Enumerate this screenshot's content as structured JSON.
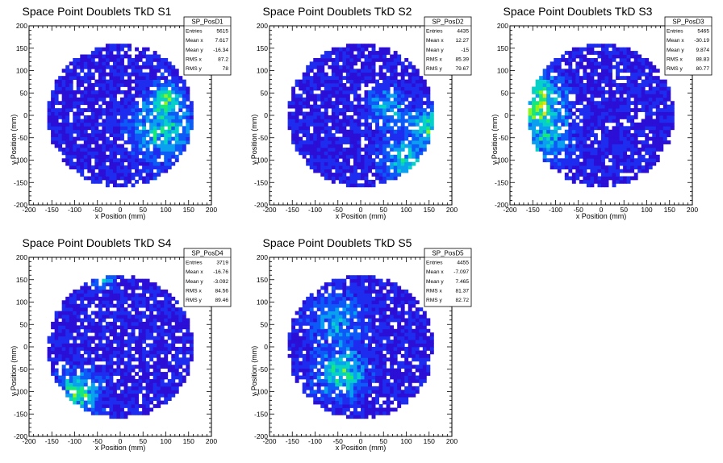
{
  "chart_data": [
    {
      "type": "heatmap",
      "title": "Space Point Doublets TkD S1",
      "xlabel": "x Position (mm)",
      "ylabel": "y Position (mm)",
      "xlim": [
        -200,
        200
      ],
      "ylim": [
        -200,
        200
      ],
      "ticks": [
        "-200",
        "-150",
        "-100",
        "-50",
        "0",
        "50",
        "100",
        "150",
        "200"
      ],
      "stats": {
        "name": "SP_PosD1",
        "rows": [
          {
            "label": "Entries",
            "value": "5615"
          },
          {
            "label": "Mean x",
            "value": "7.617"
          },
          {
            "label": "Mean y",
            "value": "-16.34"
          },
          {
            "label": "RMS x",
            "value": "87.2"
          },
          {
            "label": "RMS y",
            "value": "78"
          }
        ]
      },
      "filled_disk_radius": 160,
      "hotspots": [
        {
          "x": 95,
          "y": -30,
          "r": 50,
          "w": 1.2
        },
        {
          "x": 100,
          "y": 40,
          "r": 18,
          "w": 1.5
        }
      ]
    },
    {
      "type": "heatmap",
      "title": "Space Point Doublets TkD S2",
      "xlabel": "x Position (mm)",
      "ylabel": "y Position (mm)",
      "xlim": [
        -200,
        200
      ],
      "ylim": [
        -200,
        200
      ],
      "ticks": [
        "-200",
        "-150",
        "-100",
        "-50",
        "0",
        "50",
        "100",
        "150",
        "200"
      ],
      "stats": {
        "name": "SP_PosD2",
        "rows": [
          {
            "label": "Entries",
            "value": "4435"
          },
          {
            "label": "Mean x",
            "value": "12.27"
          },
          {
            "label": "Mean y",
            "value": "-15"
          },
          {
            "label": "RMS x",
            "value": "85.39"
          },
          {
            "label": "RMS y",
            "value": "79.67"
          }
        ]
      },
      "filled_disk_radius": 160,
      "hotspots": [
        {
          "x": 150,
          "y": -20,
          "r": 25,
          "w": 1.6
        },
        {
          "x": 100,
          "y": -100,
          "r": 35,
          "w": 1.2
        },
        {
          "x": 60,
          "y": 20,
          "r": 30,
          "w": 0.9
        }
      ]
    },
    {
      "type": "heatmap",
      "title": "Space Point Doublets TkD S3",
      "xlabel": "x Position (mm)",
      "ylabel": "y Position (mm)",
      "xlim": [
        -200,
        200
      ],
      "ylim": [
        -200,
        200
      ],
      "ticks": [
        "-200",
        "-150",
        "-100",
        "-50",
        "0",
        "50",
        "100",
        "150",
        "200"
      ],
      "stats": {
        "name": "SP_PosD3",
        "rows": [
          {
            "label": "Entries",
            "value": "5465"
          },
          {
            "label": "Mean x",
            "value": "-30.19"
          },
          {
            "label": "Mean y",
            "value": "9.874"
          },
          {
            "label": "RMS x",
            "value": "88.83"
          },
          {
            "label": "RMS y",
            "value": "80.77"
          }
        ]
      },
      "filled_disk_radius": 160,
      "hotspots": [
        {
          "x": -140,
          "y": 30,
          "r": 40,
          "w": 1.8
        },
        {
          "x": -120,
          "y": -60,
          "r": 35,
          "w": 0.9
        }
      ]
    },
    {
      "type": "heatmap",
      "title": "Space Point Doublets TkD S4",
      "xlabel": "x Position (mm)",
      "ylabel": "y Position (mm)",
      "xlim": [
        -200,
        200
      ],
      "ylim": [
        -200,
        200
      ],
      "ticks": [
        "-200",
        "-150",
        "-100",
        "-50",
        "0",
        "50",
        "100",
        "150",
        "200"
      ],
      "stats": {
        "name": "SP_PosD4",
        "rows": [
          {
            "label": "Entries",
            "value": "3719"
          },
          {
            "label": "Mean x",
            "value": "-16.76"
          },
          {
            "label": "Mean y",
            "value": "-3.092"
          },
          {
            "label": "RMS x",
            "value": "84.56"
          },
          {
            "label": "RMS y",
            "value": "89.46"
          }
        ]
      },
      "filled_disk_radius": 160,
      "hotspots": [
        {
          "x": -90,
          "y": -100,
          "r": 30,
          "w": 1.6
        },
        {
          "x": -40,
          "y": 150,
          "r": 15,
          "w": 1.2
        }
      ]
    },
    {
      "type": "heatmap",
      "title": "Space Point Doublets TkD S5",
      "xlabel": "x Position (mm)",
      "ylabel": "y Position (mm)",
      "xlim": [
        -200,
        200
      ],
      "ylim": [
        -200,
        200
      ],
      "ticks": [
        "-200",
        "-150",
        "-100",
        "-50",
        "0",
        "50",
        "100",
        "150",
        "200"
      ],
      "stats": {
        "name": "SP_PosD5",
        "rows": [
          {
            "label": "Entries",
            "value": "4455"
          },
          {
            "label": "Mean x",
            "value": "-7.097"
          },
          {
            "label": "Mean y",
            "value": "7.465"
          },
          {
            "label": "RMS x",
            "value": "81.37"
          },
          {
            "label": "RMS y",
            "value": "82.72"
          }
        ]
      },
      "filled_disk_radius": 160,
      "hotspots": [
        {
          "x": -40,
          "y": -60,
          "r": 35,
          "w": 1.5
        },
        {
          "x": -50,
          "y": 60,
          "r": 40,
          "w": 0.9
        }
      ]
    }
  ],
  "colors": {
    "palette": [
      "#2b0fd6",
      "#1e2cf0",
      "#0d5af7",
      "#0aa0ef",
      "#06d1c9",
      "#18e87a",
      "#8ff21a",
      "#e6e20b",
      "#ff7b00",
      "#ea1c1c"
    ],
    "frame": "#000000",
    "background": "#ffffff"
  }
}
